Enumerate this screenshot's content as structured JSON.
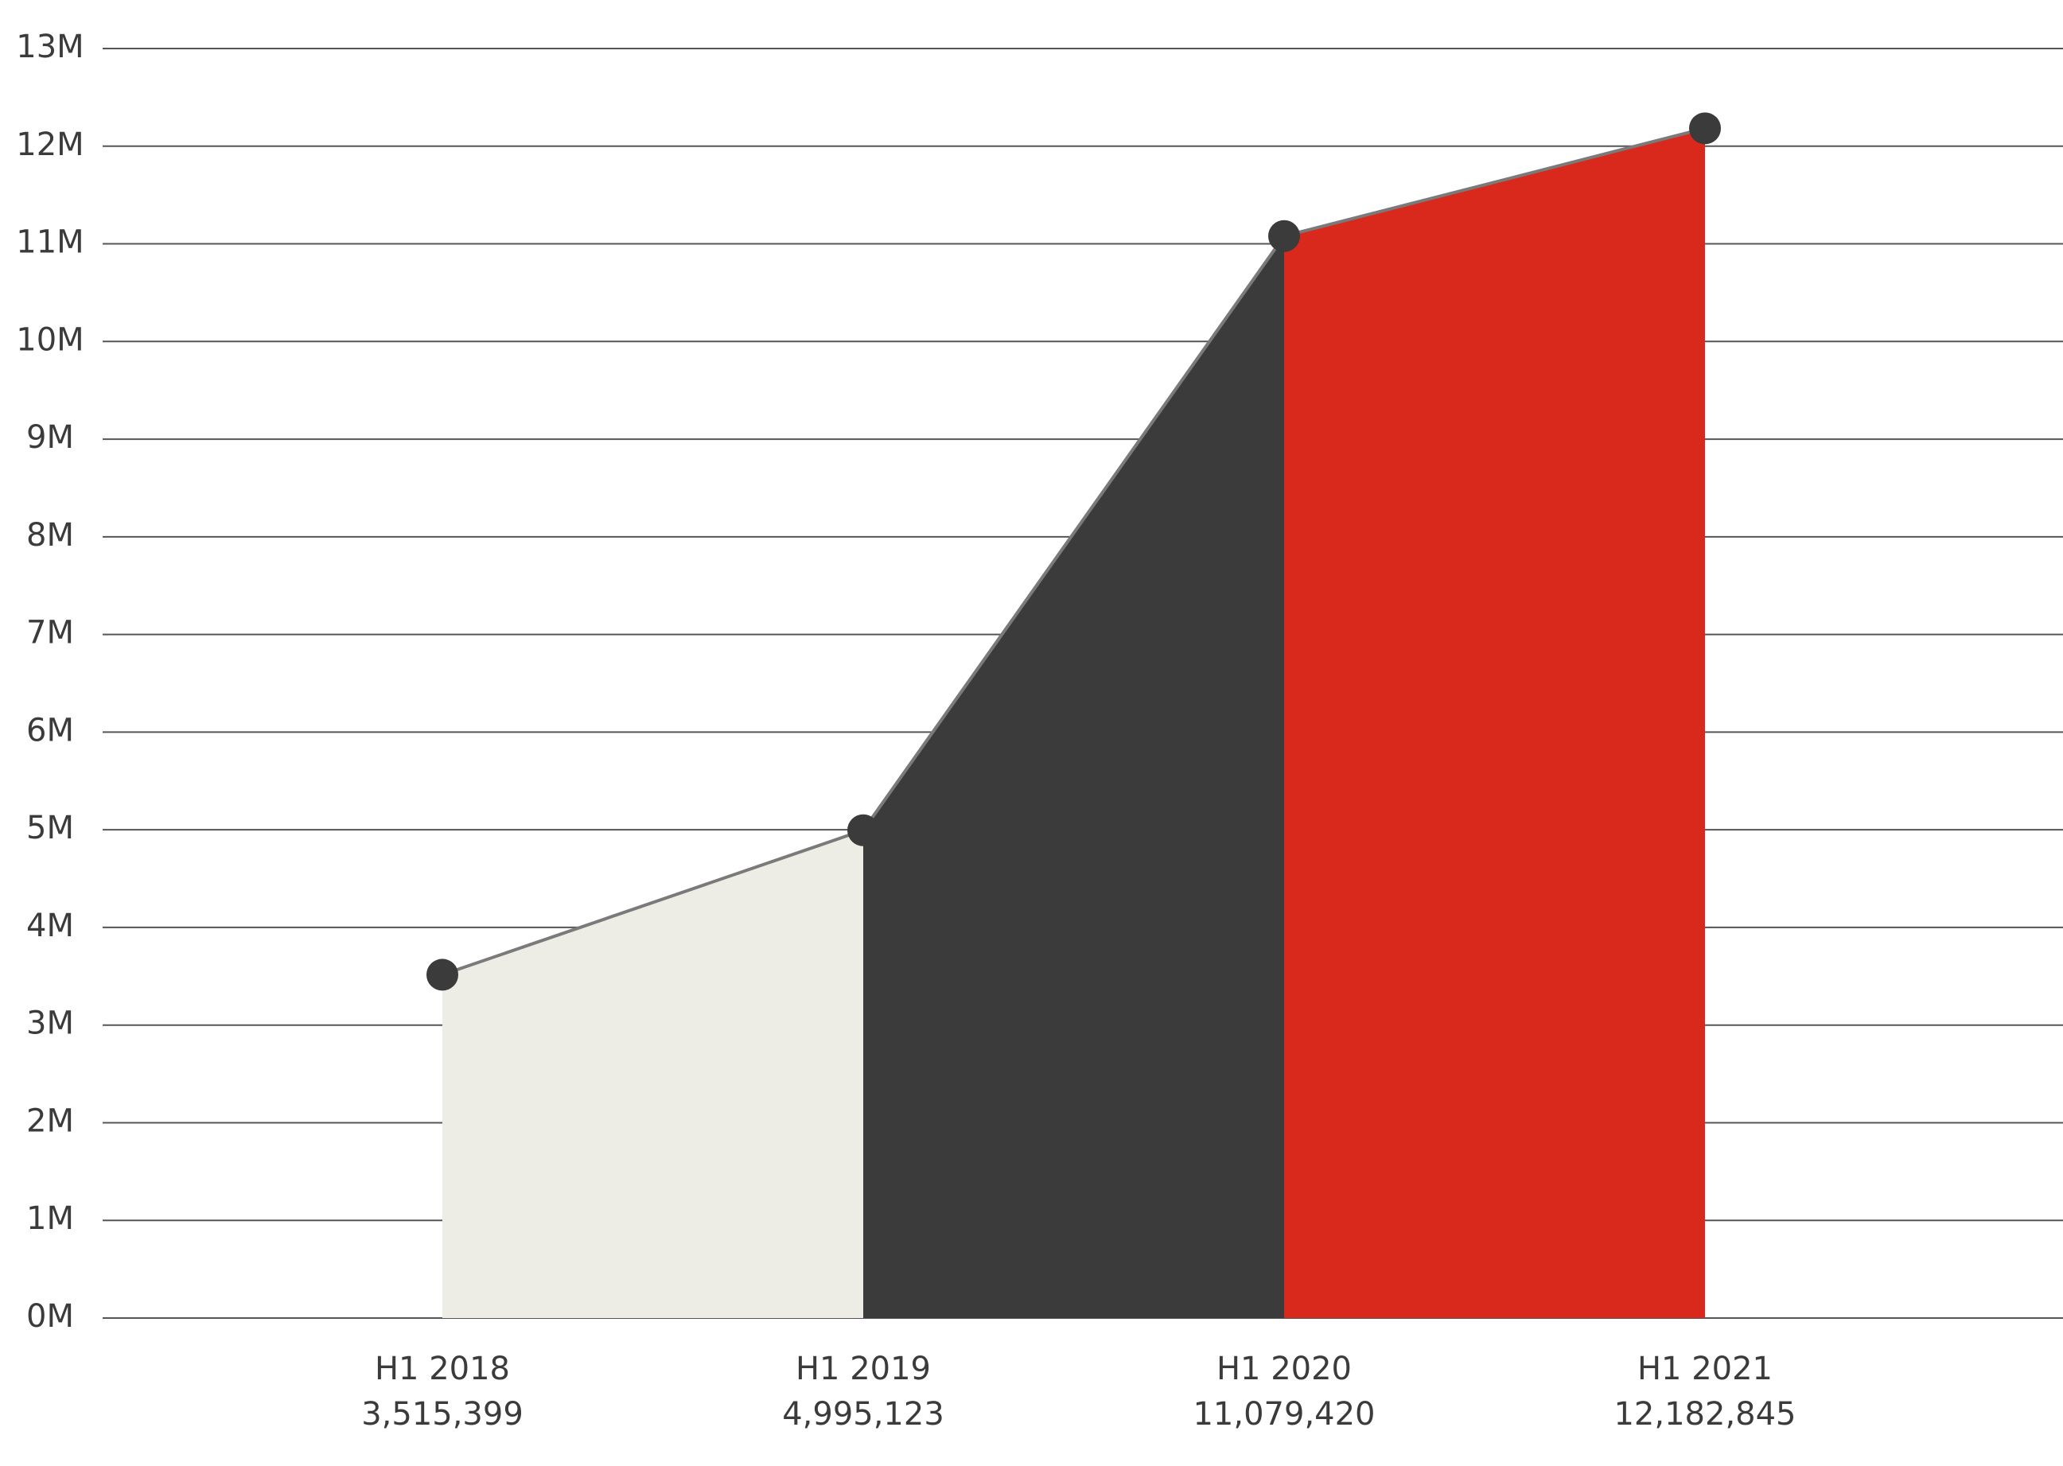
{
  "chart_data": {
    "type": "area",
    "categories": [
      "H1 2018",
      "H1 2019",
      "H1 2020",
      "H1 2021"
    ],
    "values": [
      3515399,
      4995123,
      11079420,
      12182845
    ],
    "value_labels": [
      "3,515,399",
      "4,995,123",
      "11,079,420",
      "12,182,845"
    ],
    "colors": [
      "#edece5",
      "#3b3b3b",
      "#d9291c"
    ],
    "line_color": "#7a7a7a",
    "marker_color": "#3b3b3b",
    "ylim": [
      0,
      13000000
    ],
    "yticks": [
      {
        "value": 0,
        "label": "0M"
      },
      {
        "value": 1000000,
        "label": "1M"
      },
      {
        "value": 2000000,
        "label": "2M"
      },
      {
        "value": 3000000,
        "label": "3M"
      },
      {
        "value": 4000000,
        "label": "4M"
      },
      {
        "value": 5000000,
        "label": "5M"
      },
      {
        "value": 6000000,
        "label": "6M"
      },
      {
        "value": 7000000,
        "label": "7M"
      },
      {
        "value": 8000000,
        "label": "8M"
      },
      {
        "value": 9000000,
        "label": "9M"
      },
      {
        "value": 10000000,
        "label": "10M"
      },
      {
        "value": 11000000,
        "label": "11M"
      },
      {
        "value": 12000000,
        "label": "12M"
      },
      {
        "value": 13000000,
        "label": "13M"
      }
    ],
    "grid": true
  }
}
